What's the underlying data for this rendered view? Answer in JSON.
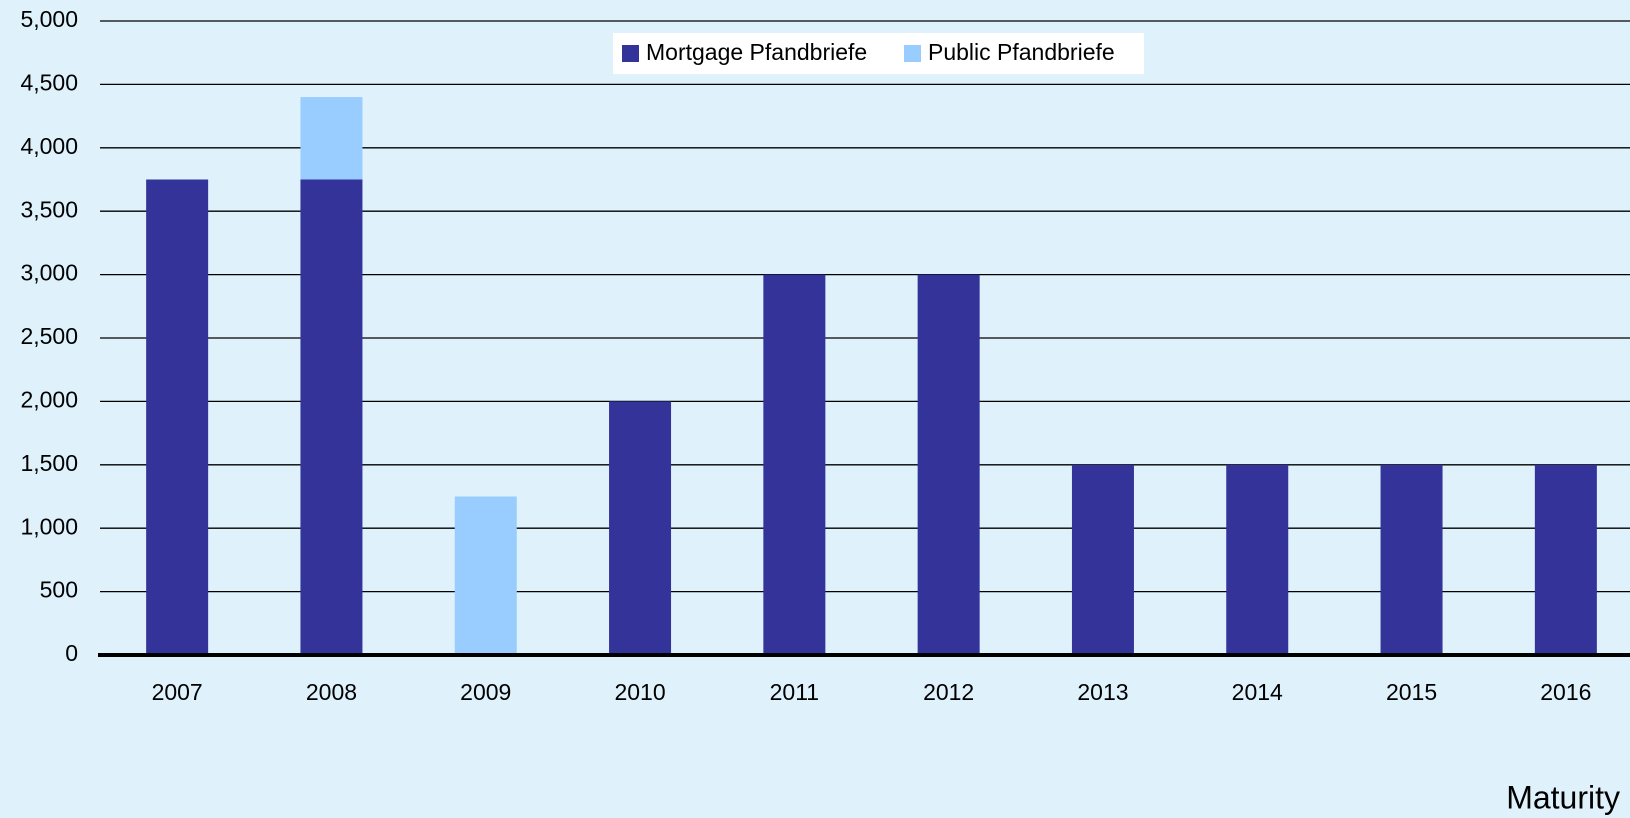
{
  "chart_data": {
    "type": "bar",
    "stacked": true,
    "xlabel": "Maturity",
    "categories": [
      "2007",
      "2008",
      "2009",
      "2010",
      "2011",
      "2012",
      "2013",
      "2014",
      "2015",
      "2016"
    ],
    "series": [
      {
        "name": "Mortgage Pfandbriefe",
        "color": "#333399",
        "values": [
          3750,
          3750,
          0,
          2000,
          3000,
          3000,
          1500,
          1500,
          1500,
          1500
        ]
      },
      {
        "name": "Public Pfandbriefe",
        "color": "#99ccff",
        "values": [
          0,
          650,
          1250,
          0,
          0,
          0,
          0,
          0,
          0,
          0
        ]
      }
    ],
    "ylim": [
      0,
      5000
    ],
    "yticks": [
      0,
      500,
      {
        "value": 1000,
        "label": "1,000"
      },
      {
        "value": 1500,
        "label": "1,500"
      },
      {
        "value": 2000,
        "label": "2,000"
      },
      {
        "value": 2500,
        "label": "2,500"
      },
      {
        "value": 3000,
        "label": "3,000"
      },
      {
        "value": 3500,
        "label": "3,500"
      },
      {
        "value": 4000,
        "label": "4,000"
      },
      {
        "value": 4500,
        "label": "4,500"
      },
      {
        "value": 5000,
        "label": "5,000"
      }
    ],
    "grid": true,
    "legend": "top"
  }
}
